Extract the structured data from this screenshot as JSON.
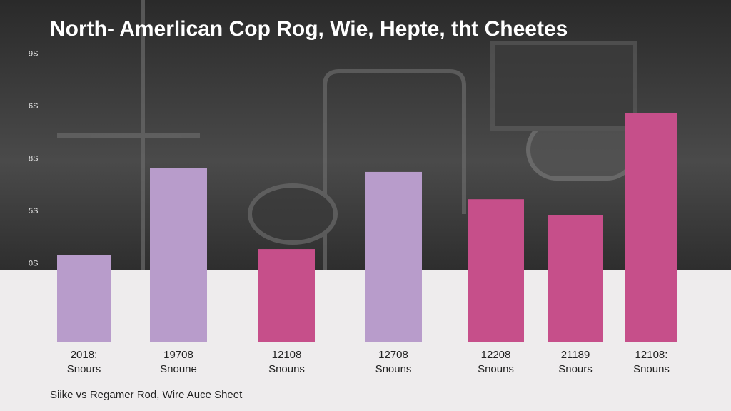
{
  "chart_data": {
    "type": "bar",
    "title": "North- Amerlican Cop Rog, Wie, Hepte, tht Cheetes",
    "subtitle": "Siike vs Regamer Rod, Wire Auce Sheet",
    "categories": [
      [
        "2018:",
        "Snours"
      ],
      [
        "19708",
        "Snoune"
      ],
      [
        "12108",
        "Snouns"
      ],
      [
        "12708",
        "Snouns"
      ],
      [
        "12208",
        "Snouns"
      ],
      [
        "21189",
        "Snours"
      ],
      [
        "12108:",
        "Snouns"
      ]
    ],
    "values": [
      0.17,
      1.83,
      0.28,
      1.75,
      1.23,
      0.93,
      2.87
    ],
    "colors": [
      "#b89ccb",
      "#b89ccb",
      "#c64f8a",
      "#b89ccb",
      "#c64f8a",
      "#c64f8a",
      "#c64f8a"
    ],
    "ylim": [
      -1.5,
      4.4
    ],
    "yticks": [
      {
        "value": 0,
        "label": "0S"
      },
      {
        "value": 1,
        "label": "5S"
      },
      {
        "value": 2,
        "label": "8S"
      },
      {
        "value": 3,
        "label": "6S"
      },
      {
        "value": 4,
        "label": "9S"
      }
    ]
  }
}
